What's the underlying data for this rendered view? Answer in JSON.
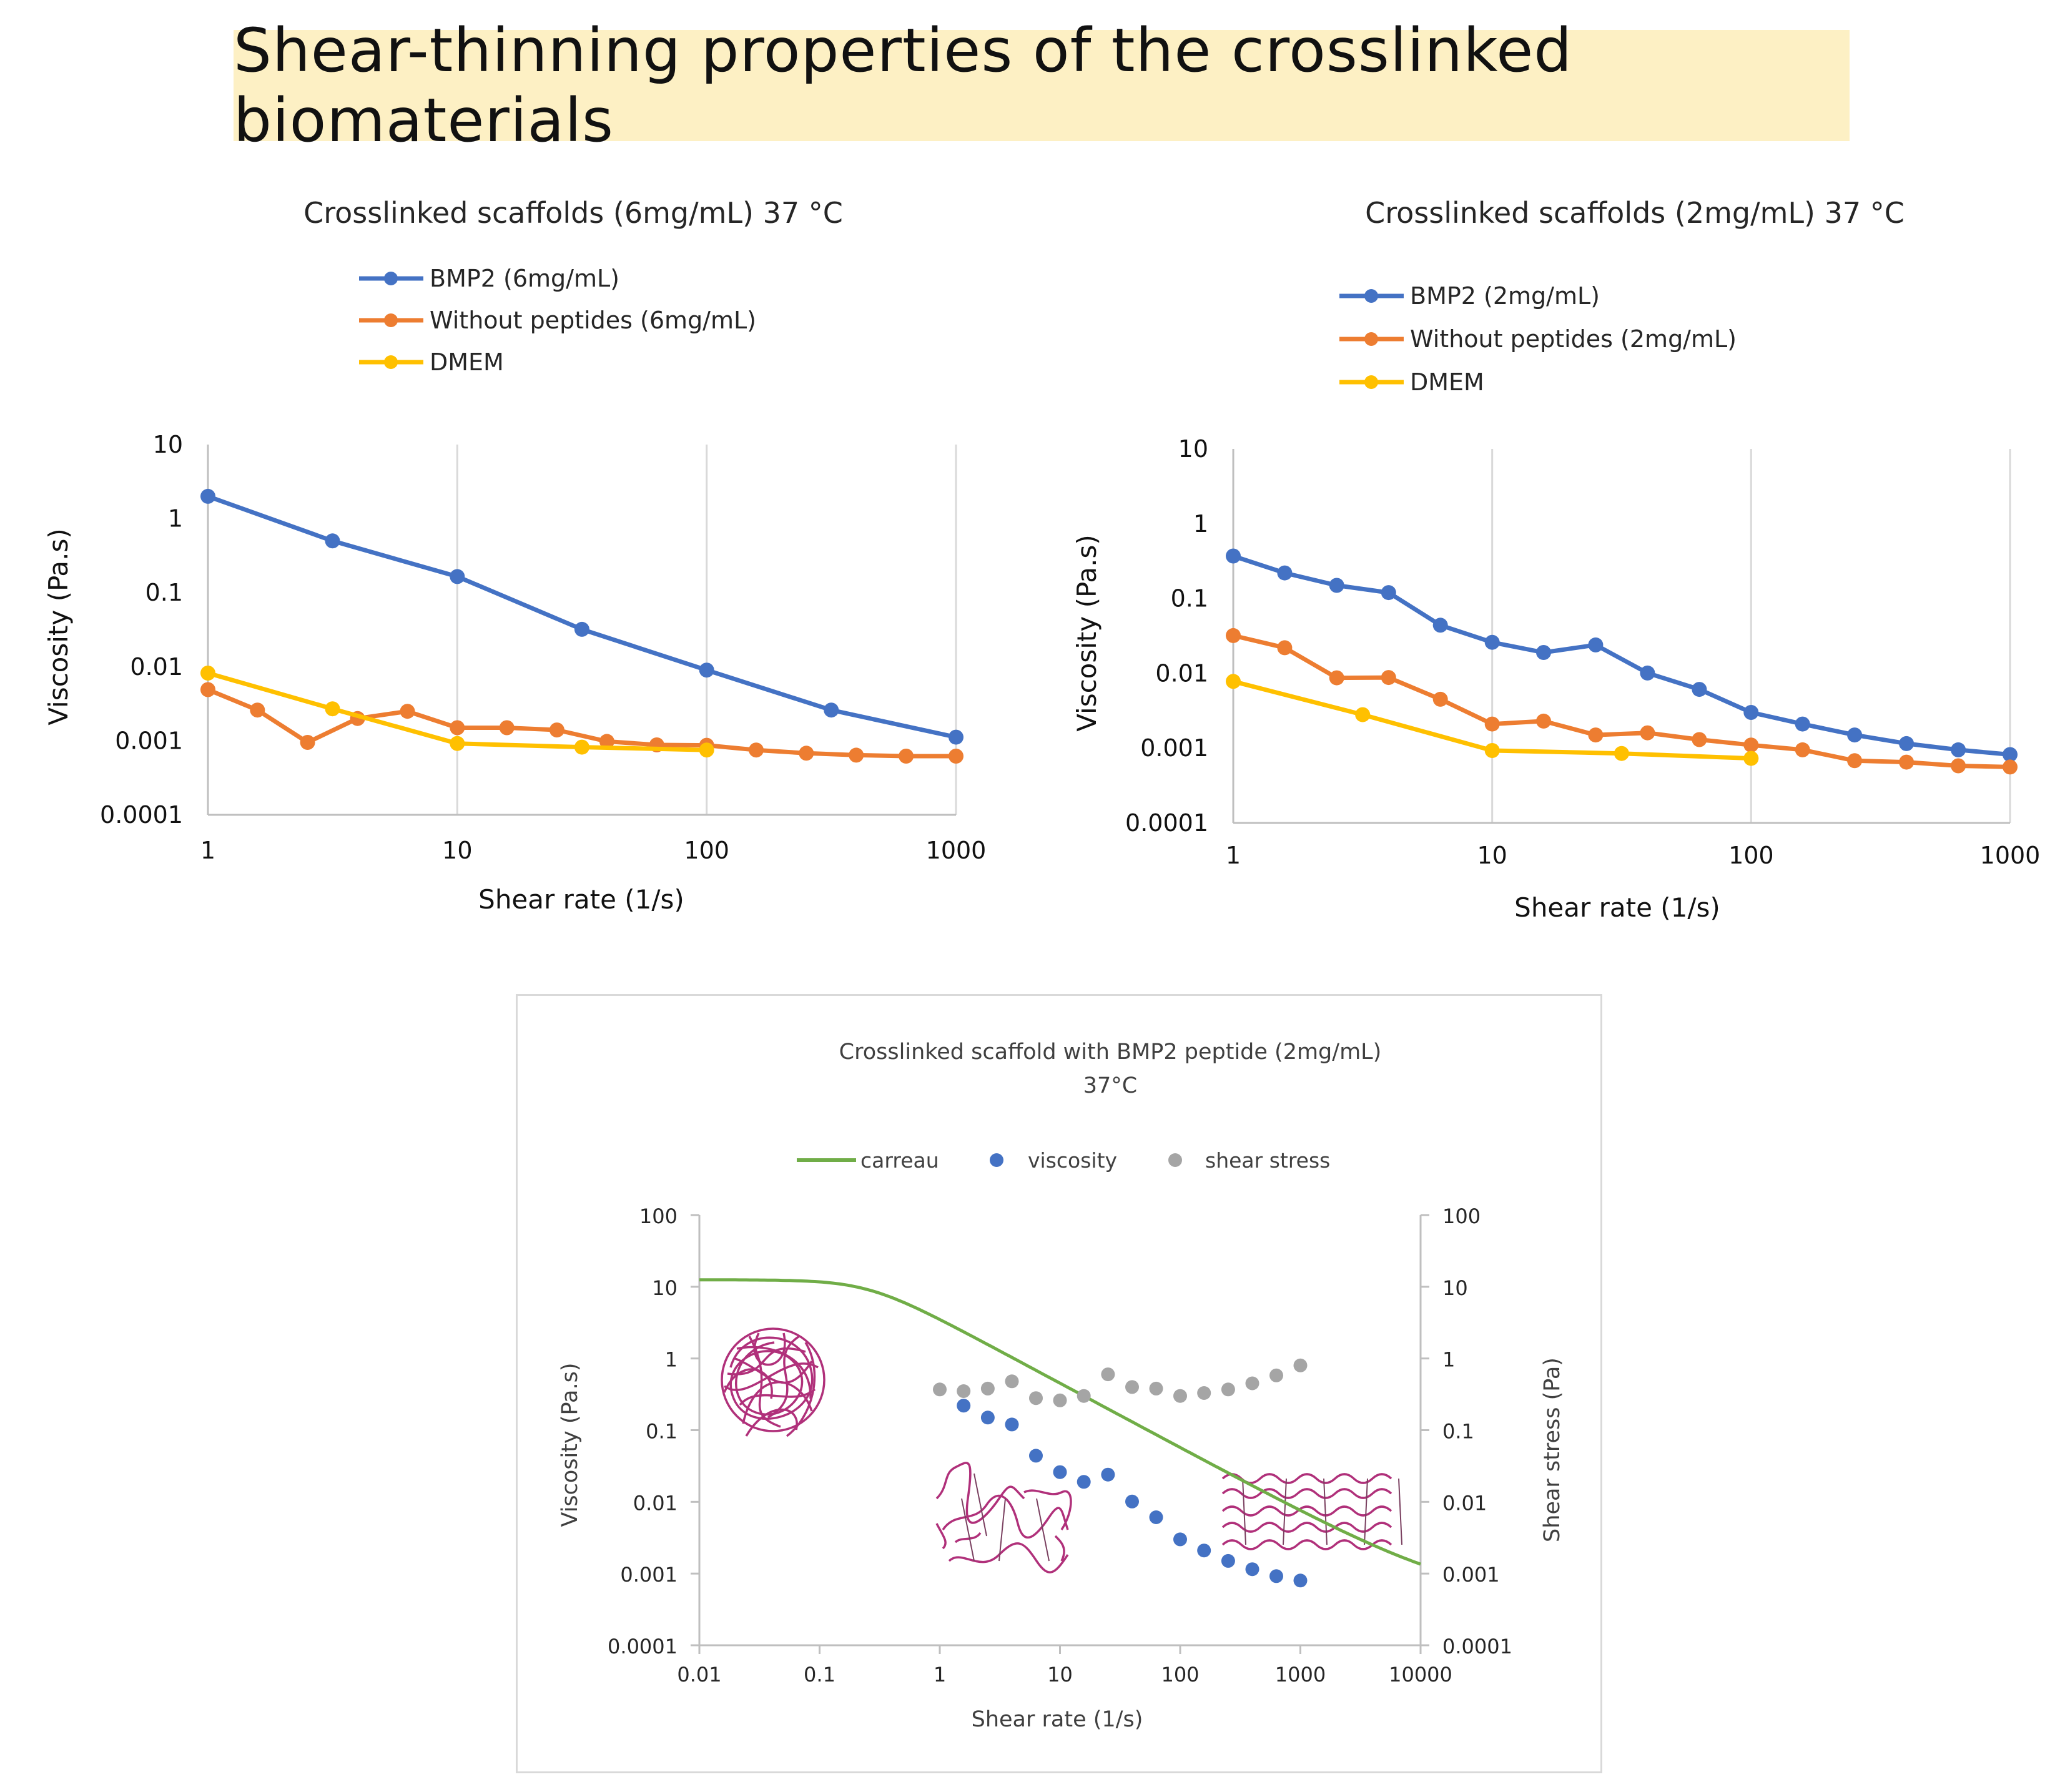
{
  "page_title": "Shear-thinning properties of the crosslinked biomaterials",
  "colors": {
    "blue": "#4472c4",
    "orange": "#ed7d31",
    "yellow": "#ffc000",
    "green": "#70ad47",
    "gray": "#a5a5a5",
    "magenta": "#b0307a"
  },
  "chart_data": [
    {
      "id": "chart1",
      "type": "line",
      "title": "Crosslinked scaffolds (6mg/mL) 37 °C",
      "xlabel": "Shear rate (1/s)",
      "ylabel": "Viscosity (Pa.s)",
      "xscale": "log",
      "yscale": "log",
      "xlim": [
        1,
        1000
      ],
      "ylim": [
        0.0001,
        10
      ],
      "x_ticks": [
        "1",
        "10",
        "100",
        "1000"
      ],
      "y_ticks": [
        "10",
        "1",
        "0.1",
        "0.01",
        "0.001",
        "0.0001"
      ],
      "grid": "vertical",
      "legend_position": "top-left",
      "series": [
        {
          "name": "BMP2 (6mg/mL)",
          "color": "#4472c4",
          "x": [
            1,
            3.16,
            10,
            31.6,
            100,
            316,
            1000
          ],
          "y": [
            2.0,
            0.5,
            0.165,
            0.032,
            0.009,
            0.0026,
            0.00112
          ]
        },
        {
          "name": "Without peptides (6mg/mL)",
          "color": "#ed7d31",
          "x": [
            1,
            1.58,
            2.51,
            3.98,
            6.31,
            10,
            15.8,
            25.1,
            39.8,
            63.1,
            100,
            158,
            251,
            398,
            631,
            1000
          ],
          "y": [
            0.0049,
            0.0026,
            0.00095,
            0.002,
            0.0025,
            0.0015,
            0.0015,
            0.0014,
            0.00098,
            0.00088,
            0.00087,
            0.00075,
            0.00068,
            0.00064,
            0.00062,
            0.00062
          ]
        },
        {
          "name": "DMEM",
          "color": "#ffc000",
          "x": [
            1,
            3.16,
            10,
            31.6,
            100
          ],
          "y": [
            0.0082,
            0.0027,
            0.00092,
            0.00082,
            0.00075
          ]
        }
      ]
    },
    {
      "id": "chart2",
      "type": "line",
      "title": "Crosslinked scaffolds (2mg/mL) 37 °C",
      "xlabel": "Shear rate (1/s)",
      "ylabel": "Viscosity (Pa.s)",
      "xscale": "log",
      "yscale": "log",
      "xlim": [
        1,
        1000
      ],
      "ylim": [
        0.0001,
        10
      ],
      "x_ticks": [
        "1",
        "10",
        "100",
        "1000"
      ],
      "y_ticks": [
        "10",
        "1",
        "0.1",
        "0.01",
        "0.001",
        "0.0001"
      ],
      "grid": "vertical",
      "legend_position": "top-left",
      "series": [
        {
          "name": "BMP2 (2mg/mL)",
          "color": "#4472c4",
          "x": [
            1,
            1.58,
            2.51,
            3.98,
            6.31,
            10,
            15.8,
            25.1,
            39.8,
            63.1,
            100,
            158,
            251,
            398,
            631,
            1000
          ],
          "y": [
            0.37,
            0.22,
            0.15,
            0.12,
            0.044,
            0.026,
            0.019,
            0.024,
            0.0101,
            0.0061,
            0.003,
            0.0021,
            0.0015,
            0.00115,
            0.00095,
            0.00082
          ]
        },
        {
          "name": "Without peptides (2mg/mL)",
          "color": "#ed7d31",
          "x": [
            1,
            1.58,
            2.51,
            3.98,
            6.31,
            10,
            15.8,
            25.1,
            39.8,
            63.1,
            100,
            158,
            251,
            398,
            631,
            1000
          ],
          "y": [
            0.032,
            0.022,
            0.0087,
            0.0088,
            0.0045,
            0.0021,
            0.0023,
            0.0015,
            0.0016,
            0.0013,
            0.0011,
            0.00095,
            0.00068,
            0.00065,
            0.00058,
            0.00056
          ]
        },
        {
          "name": "DMEM",
          "color": "#ffc000",
          "x": [
            1,
            3.16,
            10,
            31.6,
            100
          ],
          "y": [
            0.0078,
            0.0028,
            0.00093,
            0.00085,
            0.00073
          ]
        }
      ]
    },
    {
      "id": "chart3",
      "type": "scatter",
      "title": "Crosslinked scaffold with BMP2 peptide (2mg/mL)",
      "subtitle": "37°C",
      "xlabel": "Shear rate (1/s)",
      "ylabel": "Viscosity (Pa.s)",
      "y2label": "Shear stress (Pa)",
      "xscale": "log",
      "yscale": "log",
      "xlim": [
        0.01,
        10000
      ],
      "ylim": [
        0.0001,
        100
      ],
      "x_ticks": [
        "0.01",
        "0.1",
        "1",
        "10",
        "100",
        "1000",
        "10000"
      ],
      "y_ticks": [
        "100",
        "10",
        "1",
        "0.1",
        "0.01",
        "0.001",
        "0.0001"
      ],
      "y2_ticks": [
        "100",
        "10",
        "1",
        "0.1",
        "0.01",
        "0.001",
        "0.0001"
      ],
      "grid": "none",
      "legend_position": "top",
      "carreau": {
        "name": "carreau",
        "color": "#70ad47",
        "eta0": 12.5,
        "eta_inf": 0.00045,
        "lambda": 4,
        "n": 0.1,
        "x_range": [
          0.01,
          10000
        ]
      },
      "series": [
        {
          "name": "viscosity",
          "color": "#4472c4",
          "x": [
            1.58,
            2.51,
            3.98,
            6.31,
            10,
            15.8,
            25.1,
            39.8,
            63.1,
            100,
            158,
            251,
            398,
            631,
            1000
          ],
          "y": [
            0.22,
            0.15,
            0.12,
            0.044,
            0.026,
            0.019,
            0.024,
            0.0101,
            0.0061,
            0.003,
            0.0021,
            0.0015,
            0.00115,
            0.00092,
            0.0008
          ]
        },
        {
          "name": "shear stress",
          "color": "#a5a5a5",
          "x": [
            1,
            1.58,
            2.51,
            3.98,
            6.31,
            10,
            15.8,
            25.1,
            39.8,
            63.1,
            100,
            158,
            251,
            398,
            631,
            1000
          ],
          "y": [
            0.37,
            0.35,
            0.38,
            0.48,
            0.28,
            0.26,
            0.3,
            0.6,
            0.4,
            0.38,
            0.3,
            0.33,
            0.37,
            0.45,
            0.58,
            0.8
          ]
        }
      ]
    }
  ]
}
